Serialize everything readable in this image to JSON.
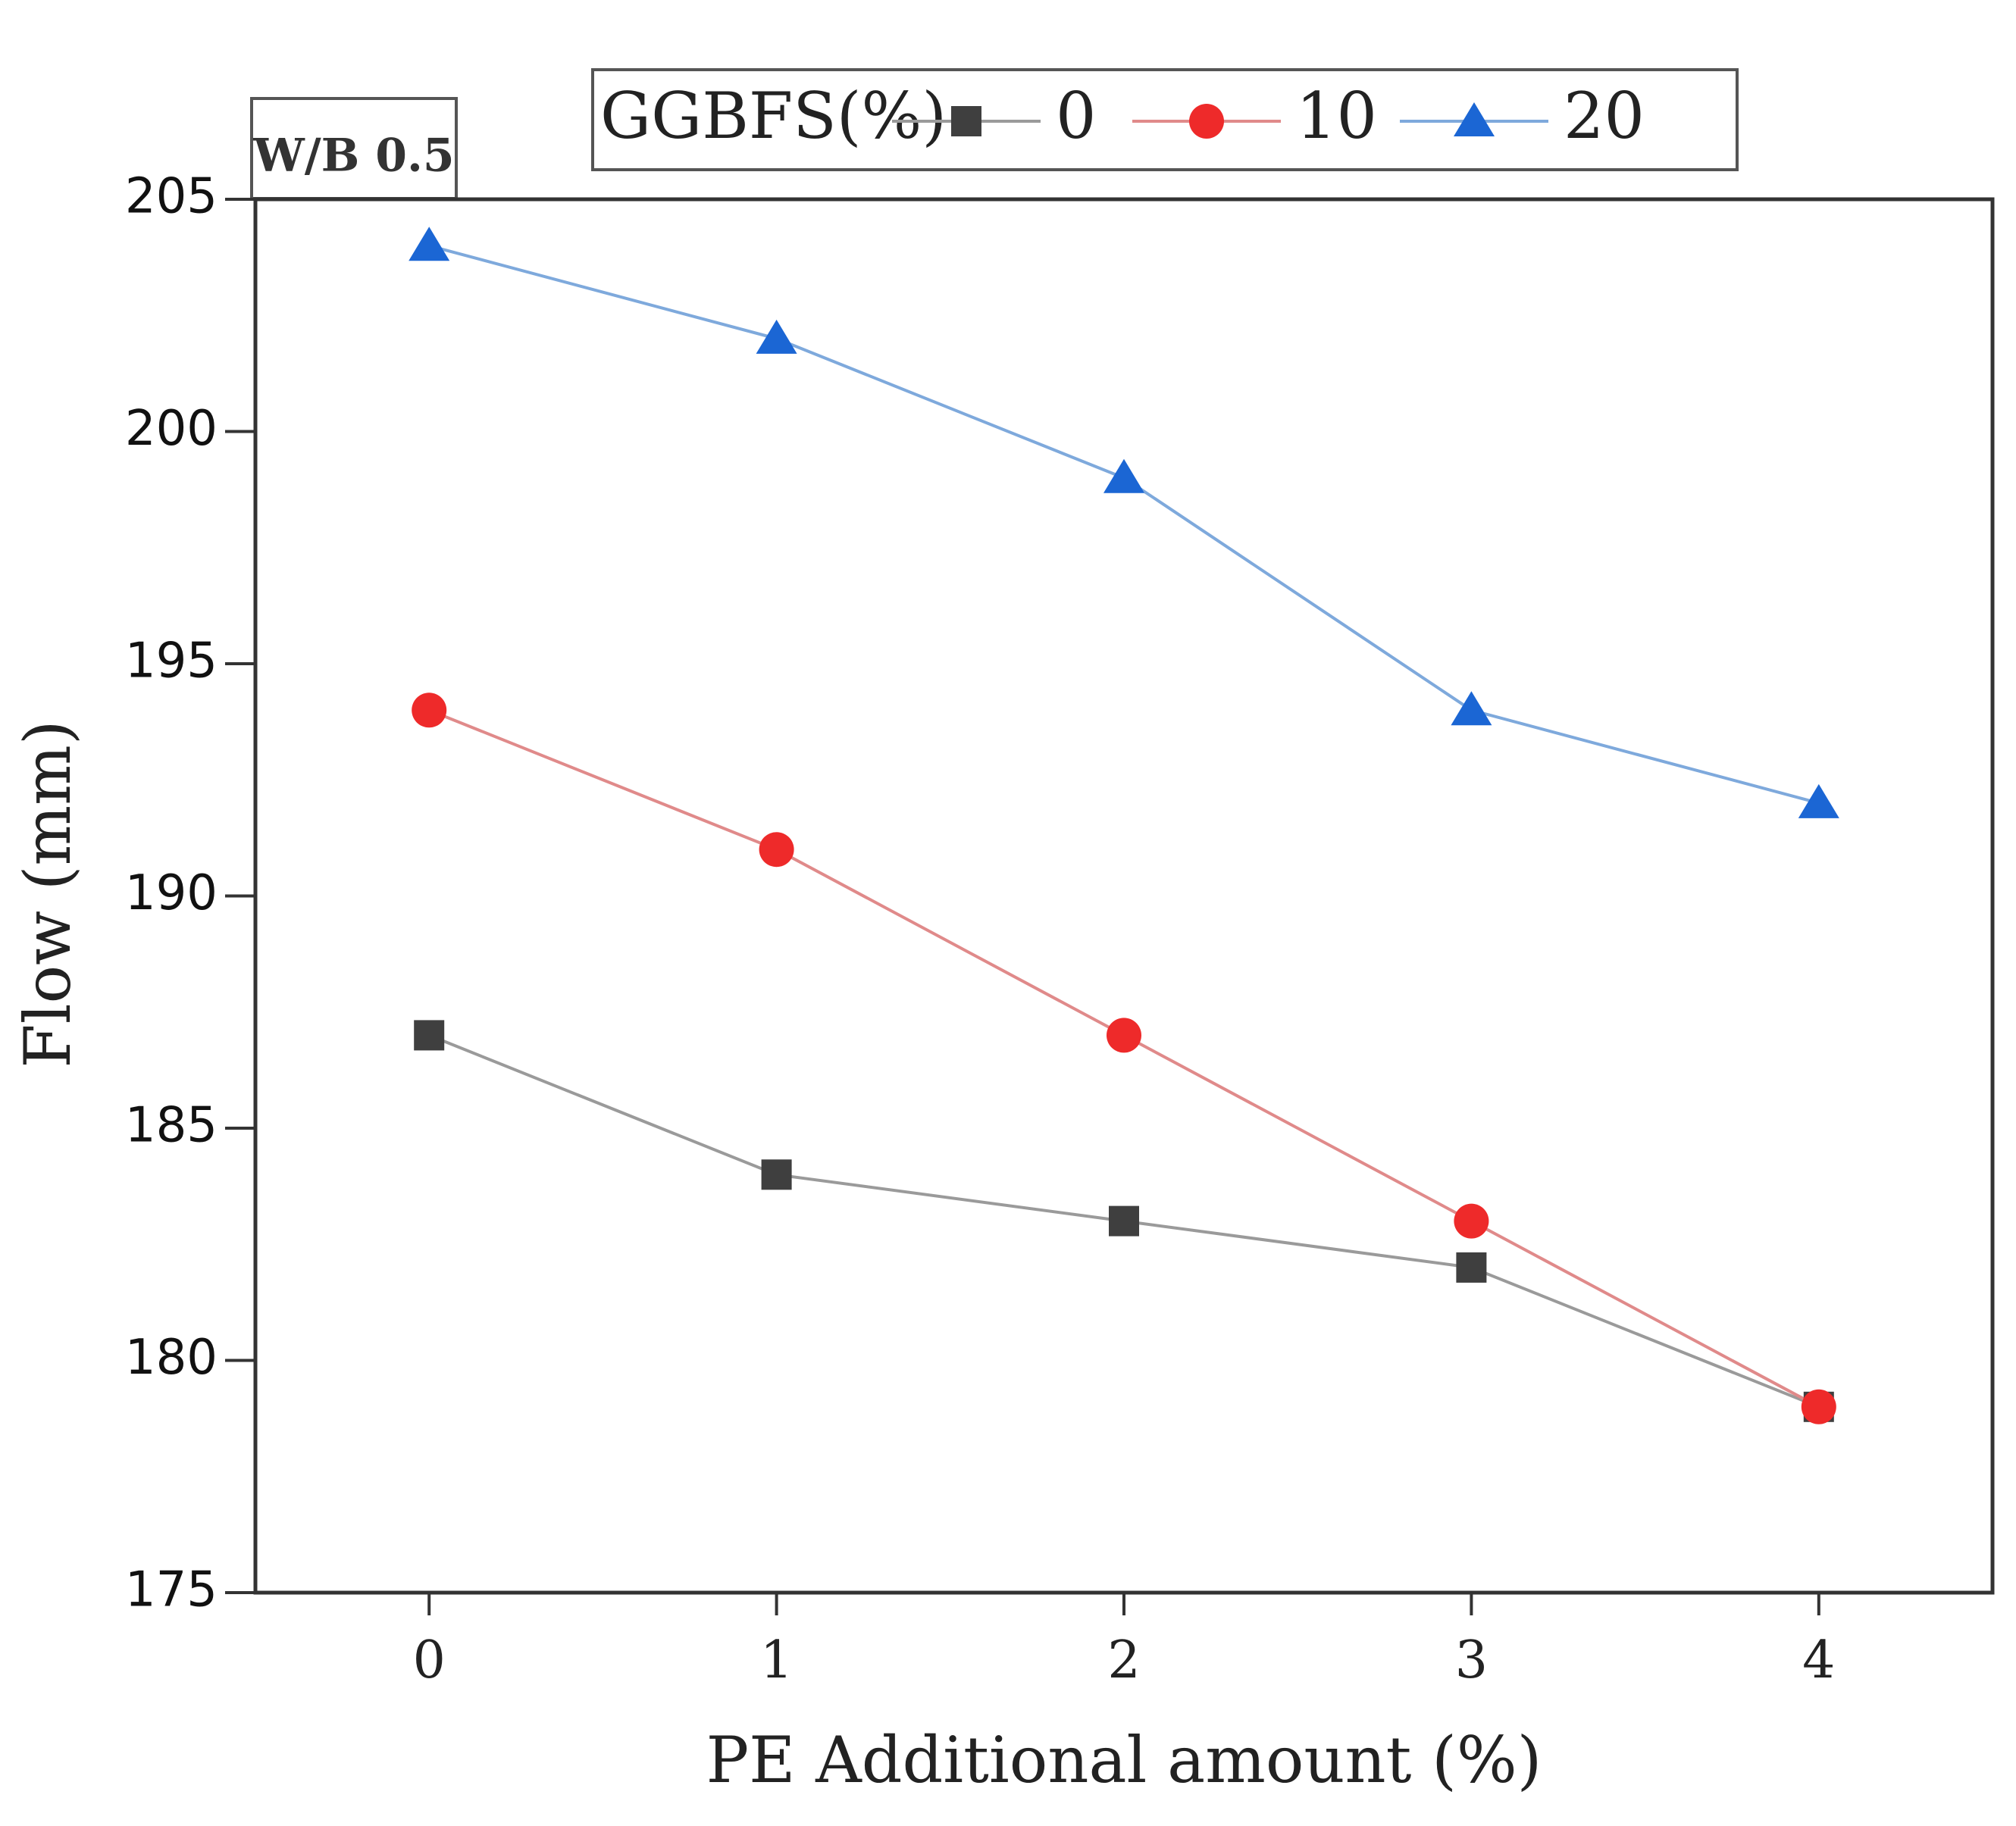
{
  "chart_data": {
    "type": "line",
    "annotation": "W/B 0.5",
    "xlabel": "PE Additional amount (%)",
    "ylabel": "Flow (mm)",
    "x": [
      0,
      1,
      2,
      3,
      4
    ],
    "x_tick_labels": [
      "0",
      "1",
      "2",
      "3",
      "4"
    ],
    "xlim": [
      -0.5,
      4.5
    ],
    "ylim": [
      175,
      205
    ],
    "y_ticks": [
      175,
      180,
      185,
      190,
      195,
      200,
      205
    ],
    "y_tick_labels": [
      "175",
      "180",
      "185",
      "190",
      "195",
      "200",
      "205"
    ],
    "legend": {
      "title": "GGBFS(%)",
      "position": "top-center"
    },
    "series": [
      {
        "name": "0",
        "marker": "square",
        "line_color": "#9a9a9a",
        "marker_color": "#3f3f3f",
        "values": [
          187,
          184,
          183,
          182,
          179
        ]
      },
      {
        "name": "10",
        "marker": "circle",
        "line_color": "#e08a8a",
        "marker_color": "#ee2a2a",
        "values": [
          194,
          191,
          187,
          183,
          179
        ]
      },
      {
        "name": "20",
        "marker": "triangle",
        "line_color": "#7ea9dc",
        "marker_color": "#1b66d4",
        "values": [
          204,
          202,
          199,
          194,
          192
        ]
      }
    ]
  }
}
